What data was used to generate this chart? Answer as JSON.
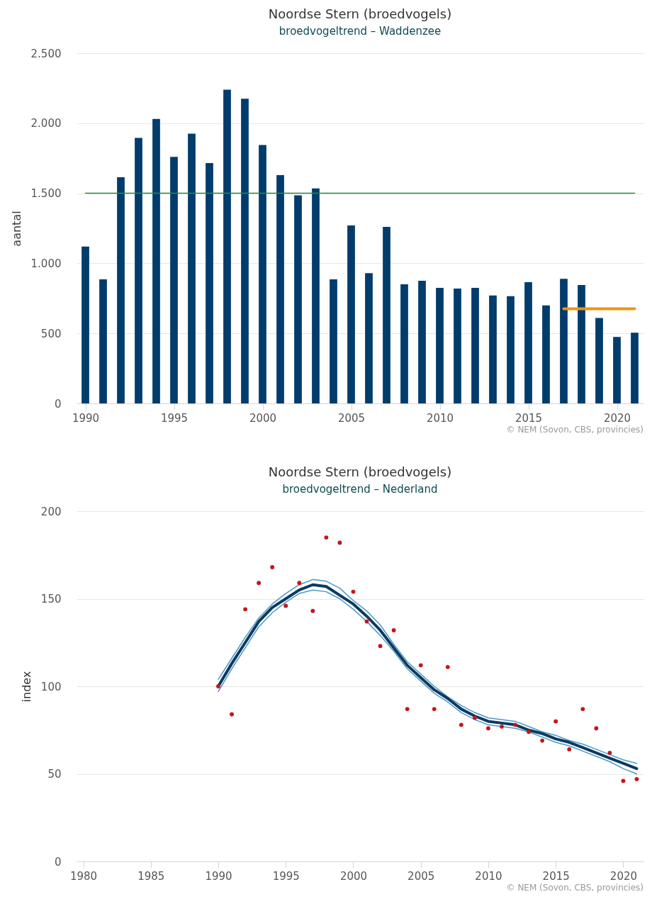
{
  "chart_data": [
    {
      "type": "bar",
      "title": "Noordse Stern (broedvogels)",
      "subtitle": "broedvogeltrend – Waddenzee",
      "ylabel": "aantal",
      "x": [
        1990,
        1991,
        1992,
        1993,
        1994,
        1995,
        1996,
        1997,
        1998,
        1999,
        2000,
        2001,
        2002,
        2003,
        2004,
        2005,
        2006,
        2007,
        2008,
        2009,
        2010,
        2011,
        2012,
        2013,
        2014,
        2015,
        2016,
        2017,
        2018,
        2019,
        2020,
        2021
      ],
      "xlim": [
        1989.5,
        2021.5
      ],
      "xticks": [
        1990,
        1995,
        2000,
        2005,
        2010,
        2015,
        2020
      ],
      "ylim": [
        0,
        2500
      ],
      "yticks": [
        0,
        500,
        {
          "value": 1000,
          "label": "1.000"
        },
        {
          "value": 1500,
          "label": "1.500"
        },
        {
          "value": 2000,
          "label": "2.000"
        },
        {
          "value": 2500,
          "label": "2.500"
        }
      ],
      "grid": "y",
      "series": [
        {
          "color": "#003c6c",
          "values": [
            1120,
            885,
            1615,
            1895,
            2030,
            1760,
            1925,
            1715,
            2240,
            2175,
            1845,
            1630,
            1485,
            1535,
            885,
            1270,
            930,
            1260,
            850,
            875,
            825,
            820,
            825,
            770,
            765,
            865,
            700,
            890,
            845,
            610,
            475,
            505
          ]
        },
        {
          "type": "line",
          "color": "#2a8a45",
          "x": [
            1990,
            2021
          ],
          "values": [
            1500,
            1500
          ]
        },
        {
          "type": "line",
          "color": "#f29313",
          "x": [
            2017,
            2021
          ],
          "values": [
            675,
            675
          ]
        }
      ],
      "annotations": [
        "© NEM (Sovon, CBS, provincies)"
      ]
    },
    {
      "type": "line",
      "title": "Noordse Stern (broedvogels)",
      "subtitle": "broedvogeltrend – Nederland",
      "ylabel": "index",
      "x": [
        1990,
        1991,
        1992,
        1993,
        1994,
        1995,
        1996,
        1997,
        1998,
        1999,
        2000,
        2001,
        2002,
        2003,
        2004,
        2005,
        2006,
        2007,
        2008,
        2009,
        2010,
        2011,
        2012,
        2013,
        2014,
        2015,
        2016,
        2017,
        2018,
        2019,
        2020,
        2021
      ],
      "xlim": [
        1979.5,
        2021.5
      ],
      "xticks": [
        1980,
        1985,
        1990,
        1995,
        2000,
        2005,
        2010,
        2015,
        2020
      ],
      "ylim": [
        0,
        200
      ],
      "yticks": [
        0,
        50,
        100,
        150,
        200
      ],
      "grid": "y",
      "series": [
        {
          "color": "#4a98c3",
          "values": [
            104,
            116,
            128,
            139,
            147,
            153,
            158,
            161,
            160,
            156,
            149,
            143,
            135,
            124,
            114,
            107,
            100,
            94,
            89,
            85,
            82,
            81,
            80,
            77,
            74,
            72,
            69,
            67,
            64,
            61,
            58,
            56
          ]
        },
        {
          "color": "#4a98c3",
          "values": [
            97,
            110,
            122,
            134,
            142,
            148,
            153,
            155,
            154,
            150,
            144,
            137,
            129,
            120,
            110,
            103,
            96,
            91,
            85,
            81,
            78,
            77,
            76,
            74,
            71,
            68,
            66,
            63,
            60,
            57,
            53,
            50
          ]
        },
        {
          "color": "#0b3a62",
          "values": [
            100,
            113,
            125,
            137,
            145,
            150,
            155,
            158,
            157,
            152,
            147,
            140,
            132,
            122,
            112,
            105,
            98,
            93,
            87,
            83,
            80,
            79,
            78,
            75,
            73,
            70,
            68,
            65,
            62,
            59,
            56,
            53
          ]
        },
        {
          "type": "scatter",
          "color": "#c3161c",
          "marker": "circle",
          "values": [
            100,
            84,
            144,
            159,
            168,
            146,
            159,
            143,
            185,
            182,
            154,
            137,
            123,
            132,
            87,
            112,
            87,
            111,
            78,
            82,
            76,
            77,
            78,
            74,
            69,
            80,
            64,
            87,
            76,
            62,
            46,
            47
          ]
        }
      ],
      "annotations": [
        "© NEM (Sovon, CBS, provincies)"
      ]
    }
  ]
}
